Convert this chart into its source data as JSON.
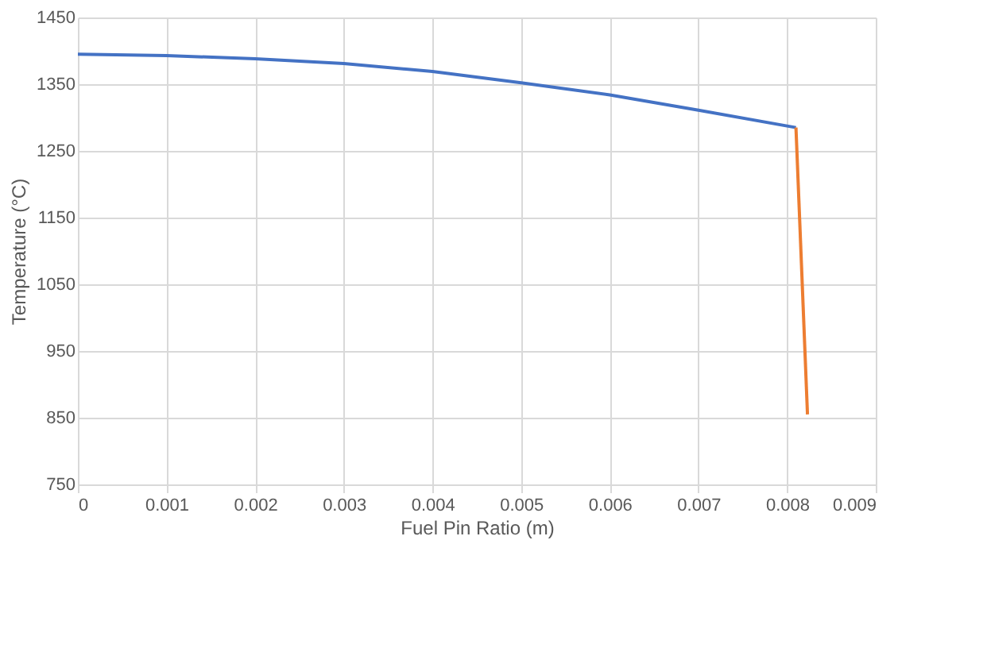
{
  "chart_data": {
    "type": "line",
    "xlabel": "Fuel Pin Ratio (m)",
    "ylabel": "Temperature (°C)",
    "xlim": [
      0,
      0.009
    ],
    "xticks": [
      0,
      0.001,
      0.002,
      0.003,
      0.004,
      0.005,
      0.006,
      0.007,
      0.008,
      0.009
    ],
    "ylim": [
      750,
      1450
    ],
    "yticks": [
      750,
      850,
      950,
      1050,
      1150,
      1250,
      1350,
      1450
    ],
    "grid": true,
    "marker": "none",
    "line_style": "solid",
    "series": [
      {
        "color": "#4472c4",
        "x": [
          0,
          0.001,
          0.002,
          0.003,
          0.004,
          0.005,
          0.006,
          0.007,
          0.0081
        ],
        "values": [
          1395,
          1393,
          1388,
          1381,
          1369,
          1352,
          1334,
          1311,
          1285
        ]
      },
      {
        "color": "#ed7d31",
        "x": [
          0.0081,
          0.00823
        ],
        "values": [
          1285,
          855
        ]
      }
    ]
  }
}
